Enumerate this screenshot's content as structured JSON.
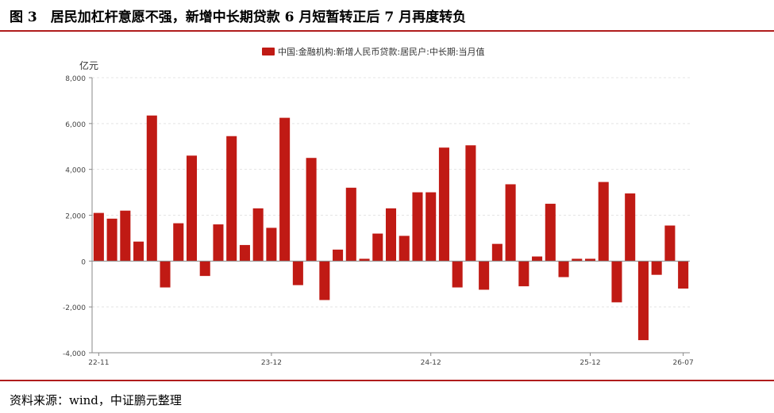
{
  "header": {
    "title": "图 3　居民加杠杆意愿不强，新增中长期贷款 6 月短暂转正后 7 月再度转负"
  },
  "footer": {
    "source": "资料来源：wind，中证鹏元整理"
  },
  "colors": {
    "bar": "#c01a14",
    "accent_rule": "#b01c1c",
    "grid": "#e4e4e4",
    "axis": "#888888"
  },
  "chart_data": {
    "type": "bar",
    "ylabel": "亿元",
    "ylim": [
      -4000,
      8000
    ],
    "yticks": [
      -4000,
      -2000,
      0,
      2000,
      4000,
      6000,
      8000
    ],
    "ytick_labels": [
      "-4,000",
      "-2,000",
      "0",
      "2,000",
      "4,000",
      "6,000",
      "8,000"
    ],
    "xtick_labels": [
      "22-11",
      "23-12",
      "24-12",
      "25-12",
      "26-07"
    ],
    "xtick_categories": [
      "2022-11",
      "2023-12",
      "2024-12",
      "2025-12",
      "2026-07"
    ],
    "legend_position": "top",
    "grid": true,
    "series": [
      {
        "name": "中国:金融机构:新增人民币贷款:居民户:中长期:当月值",
        "values": [
          2100,
          1850,
          2200,
          850,
          6350,
          -1150,
          1650,
          4600,
          -650,
          1600,
          5450,
          700,
          2300,
          1450,
          6250,
          -1050,
          4500,
          -1700,
          500,
          3200,
          100,
          1200,
          2300,
          1100,
          3000,
          3000,
          4950,
          -1150,
          5050,
          -1250,
          750,
          3350,
          -1100,
          200,
          2500,
          -700,
          100,
          100,
          3450,
          -1800,
          2950,
          -3450,
          -600,
          1550,
          -1200
        ]
      }
    ],
    "categories": [
      "2022-11",
      "2022-12",
      "2023-01",
      "2023-02",
      "2023-03",
      "2023-04",
      "2023-05",
      "2023-06",
      "2023-07",
      "2023-08",
      "2023-09",
      "2023-10",
      "2023-11",
      "2023-12",
      "2024-01",
      "2024-02",
      "2024-03",
      "2024-04",
      "2024-05",
      "2024-06",
      "2024-07",
      "2024-08",
      "2024-09",
      "2024-10",
      "2024-11",
      "2024-12",
      "2025-01",
      "2025-02",
      "2025-03",
      "2025-04",
      "2025-05",
      "2025-06",
      "2025-07",
      "2025-08",
      "2025-09",
      "2025-10",
      "2025-11",
      "2025-12",
      "2026-01",
      "2026-02",
      "2026-03",
      "2026-04",
      "2026-05",
      "2026-06",
      "2026-07"
    ]
  }
}
